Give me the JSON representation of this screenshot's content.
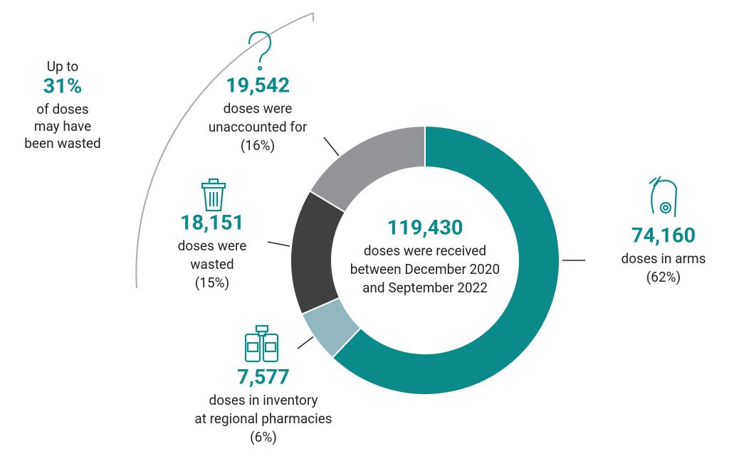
{
  "chart_data": {
    "type": "donut",
    "categories": [
      [
        "doses in arms"
      ],
      [
        "doses in inventory",
        "at regional pharmacies"
      ],
      [
        "doses were",
        "wasted"
      ],
      [
        "doses were",
        "unaccounted for"
      ]
    ],
    "values": [
      74160,
      7577,
      18151,
      19542
    ],
    "value_labels": [
      "74,160",
      "7,577",
      "18,151",
      "19,542"
    ],
    "percents": [
      62,
      6,
      15,
      16
    ],
    "percent_labels": [
      "(62%)",
      "(6%)",
      "(15%)",
      "(16%)"
    ],
    "colors": [
      "#0a8a8a",
      "#92b8bf",
      "#404040",
      "#939598"
    ],
    "total": 119430,
    "total_label": "119,430",
    "center_text": [
      "doses were received",
      "between December 2020",
      "and September 2022"
    ],
    "annotation": {
      "before": [
        "Up to"
      ],
      "value": 31,
      "value_label": "31%",
      "after": [
        "of doses",
        "may have",
        "been wasted"
      ]
    }
  }
}
